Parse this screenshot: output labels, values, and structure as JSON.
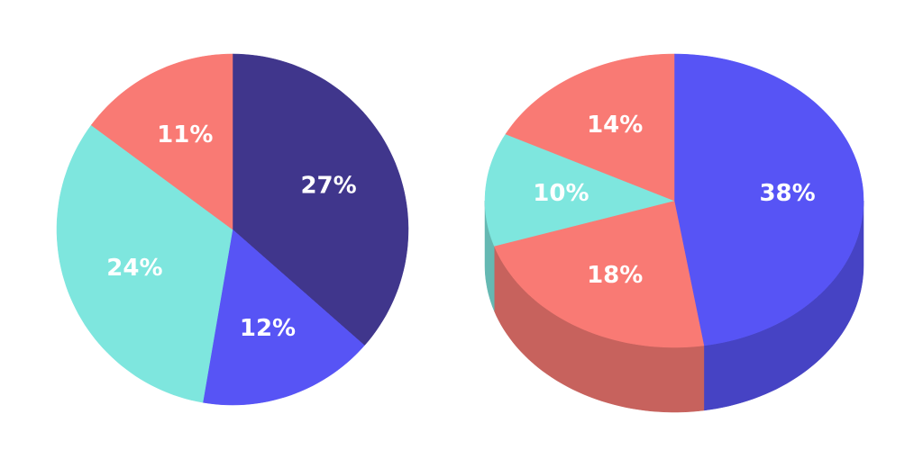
{
  "chart_data": [
    {
      "type": "pie",
      "three_d": false,
      "values": [
        27,
        12,
        24,
        11
      ],
      "value_labels": [
        "27%",
        "12%",
        "24%",
        "11%"
      ],
      "colors": [
        "#40368c",
        "#5754f5",
        "#7ee6de",
        "#f97a74"
      ]
    },
    {
      "type": "pie",
      "three_d": true,
      "values": [
        38,
        18,
        10,
        14
      ],
      "value_labels": [
        "38%",
        "18%",
        "10%",
        "14%"
      ],
      "colors": [
        "#5754f5",
        "#f97a74",
        "#7ee6de",
        "#f97a74"
      ]
    }
  ]
}
